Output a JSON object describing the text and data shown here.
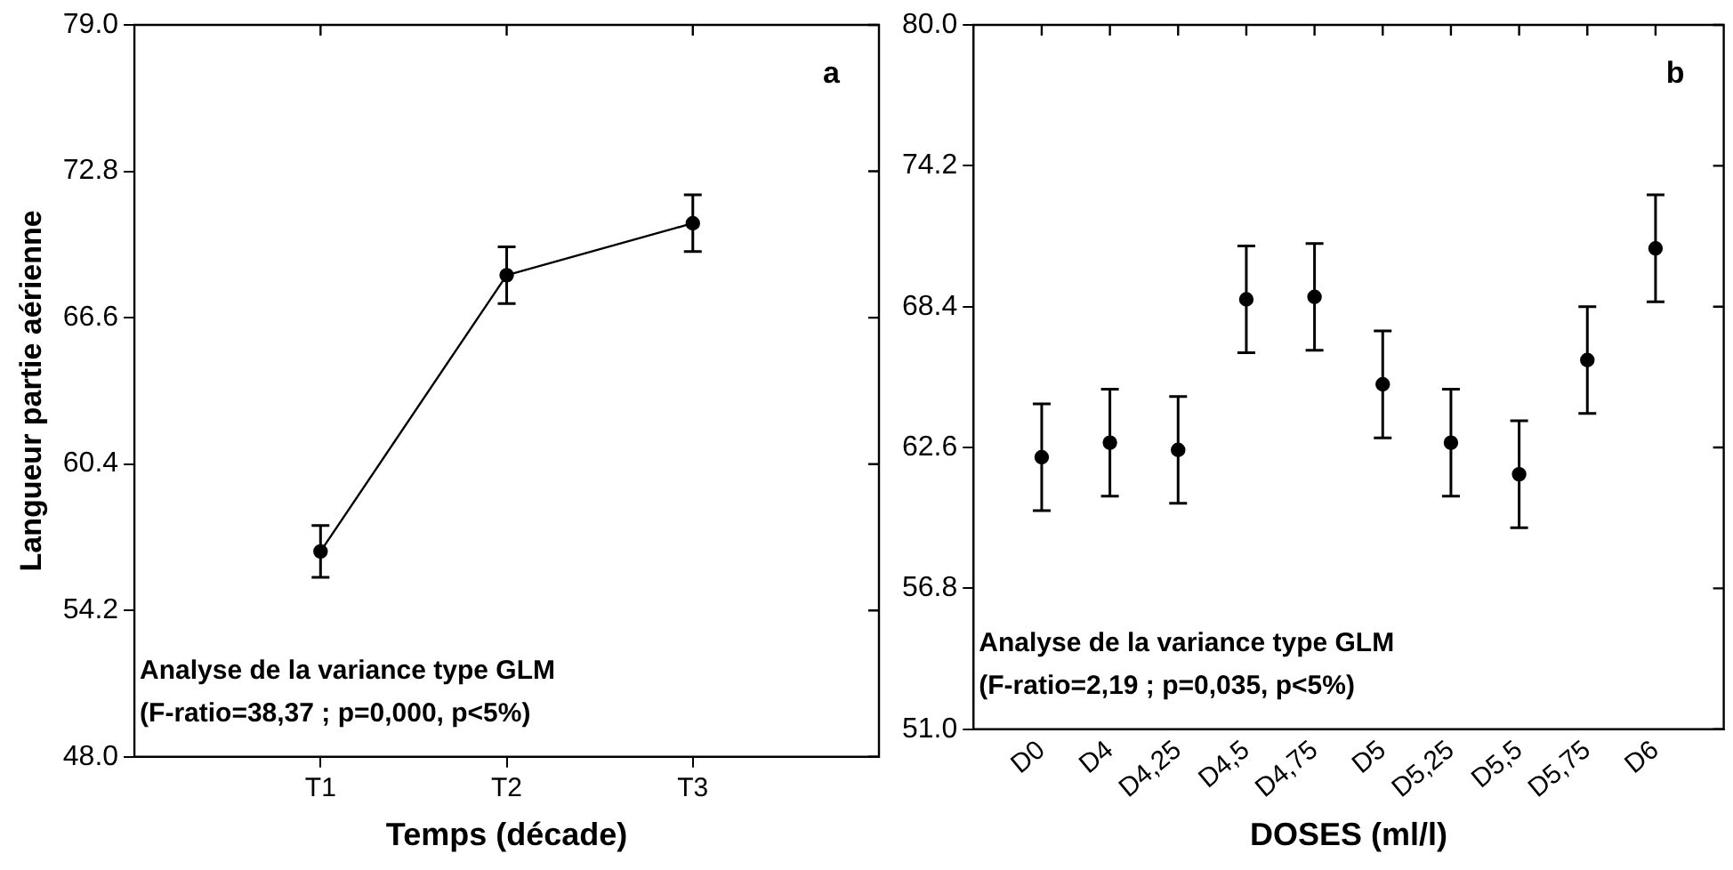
{
  "chart_data": [
    {
      "type": "line",
      "categories": [
        "T1",
        "T2",
        "T3"
      ],
      "values": [
        56.7,
        68.4,
        70.6
      ],
      "errors": [
        1.1,
        1.2,
        1.2
      ],
      "color": "#000000",
      "marker": "circle",
      "xlabel": "Temps (décade)",
      "ylabel": "Langueur partie aérienne",
      "ylim": [
        48,
        79
      ],
      "yticks": [
        {
          "value": 48,
          "label": "48.0"
        },
        54.2,
        60.4,
        66.6,
        72.8,
        {
          "value": 79,
          "label": "79.0"
        }
      ],
      "annotations": [
        "a",
        "Analyse de la variance type GLM",
        "(F-ratio=38,37 ; p=0,000, p<5%)"
      ]
    },
    {
      "type": "scatter",
      "categories": [
        "D0",
        "D4",
        "D4,25",
        "D4,5",
        "D4,75",
        "D5",
        "D5,25",
        "D5,5",
        "D5,75",
        "D6"
      ],
      "values": [
        62.2,
        62.8,
        62.5,
        68.7,
        68.8,
        65.2,
        62.8,
        61.5,
        66.2,
        70.8
      ],
      "errors": [
        2.2,
        2.2,
        2.2,
        2.2,
        2.2,
        2.2,
        2.2,
        2.2,
        2.2,
        2.2
      ],
      "color": "#000000",
      "marker": "circle",
      "xlabel": "DOSES (ml/l)",
      "ylim": [
        51,
        80
      ],
      "yticks": [
        {
          "value": 51,
          "label": "51.0"
        },
        56.8,
        62.6,
        68.4,
        74.2,
        {
          "value": 80,
          "label": "80.0"
        }
      ],
      "annotations": [
        "b",
        "Analyse de la variance type GLM",
        "(F-ratio=2,19 ; p=0,035, p<5%)"
      ]
    }
  ]
}
